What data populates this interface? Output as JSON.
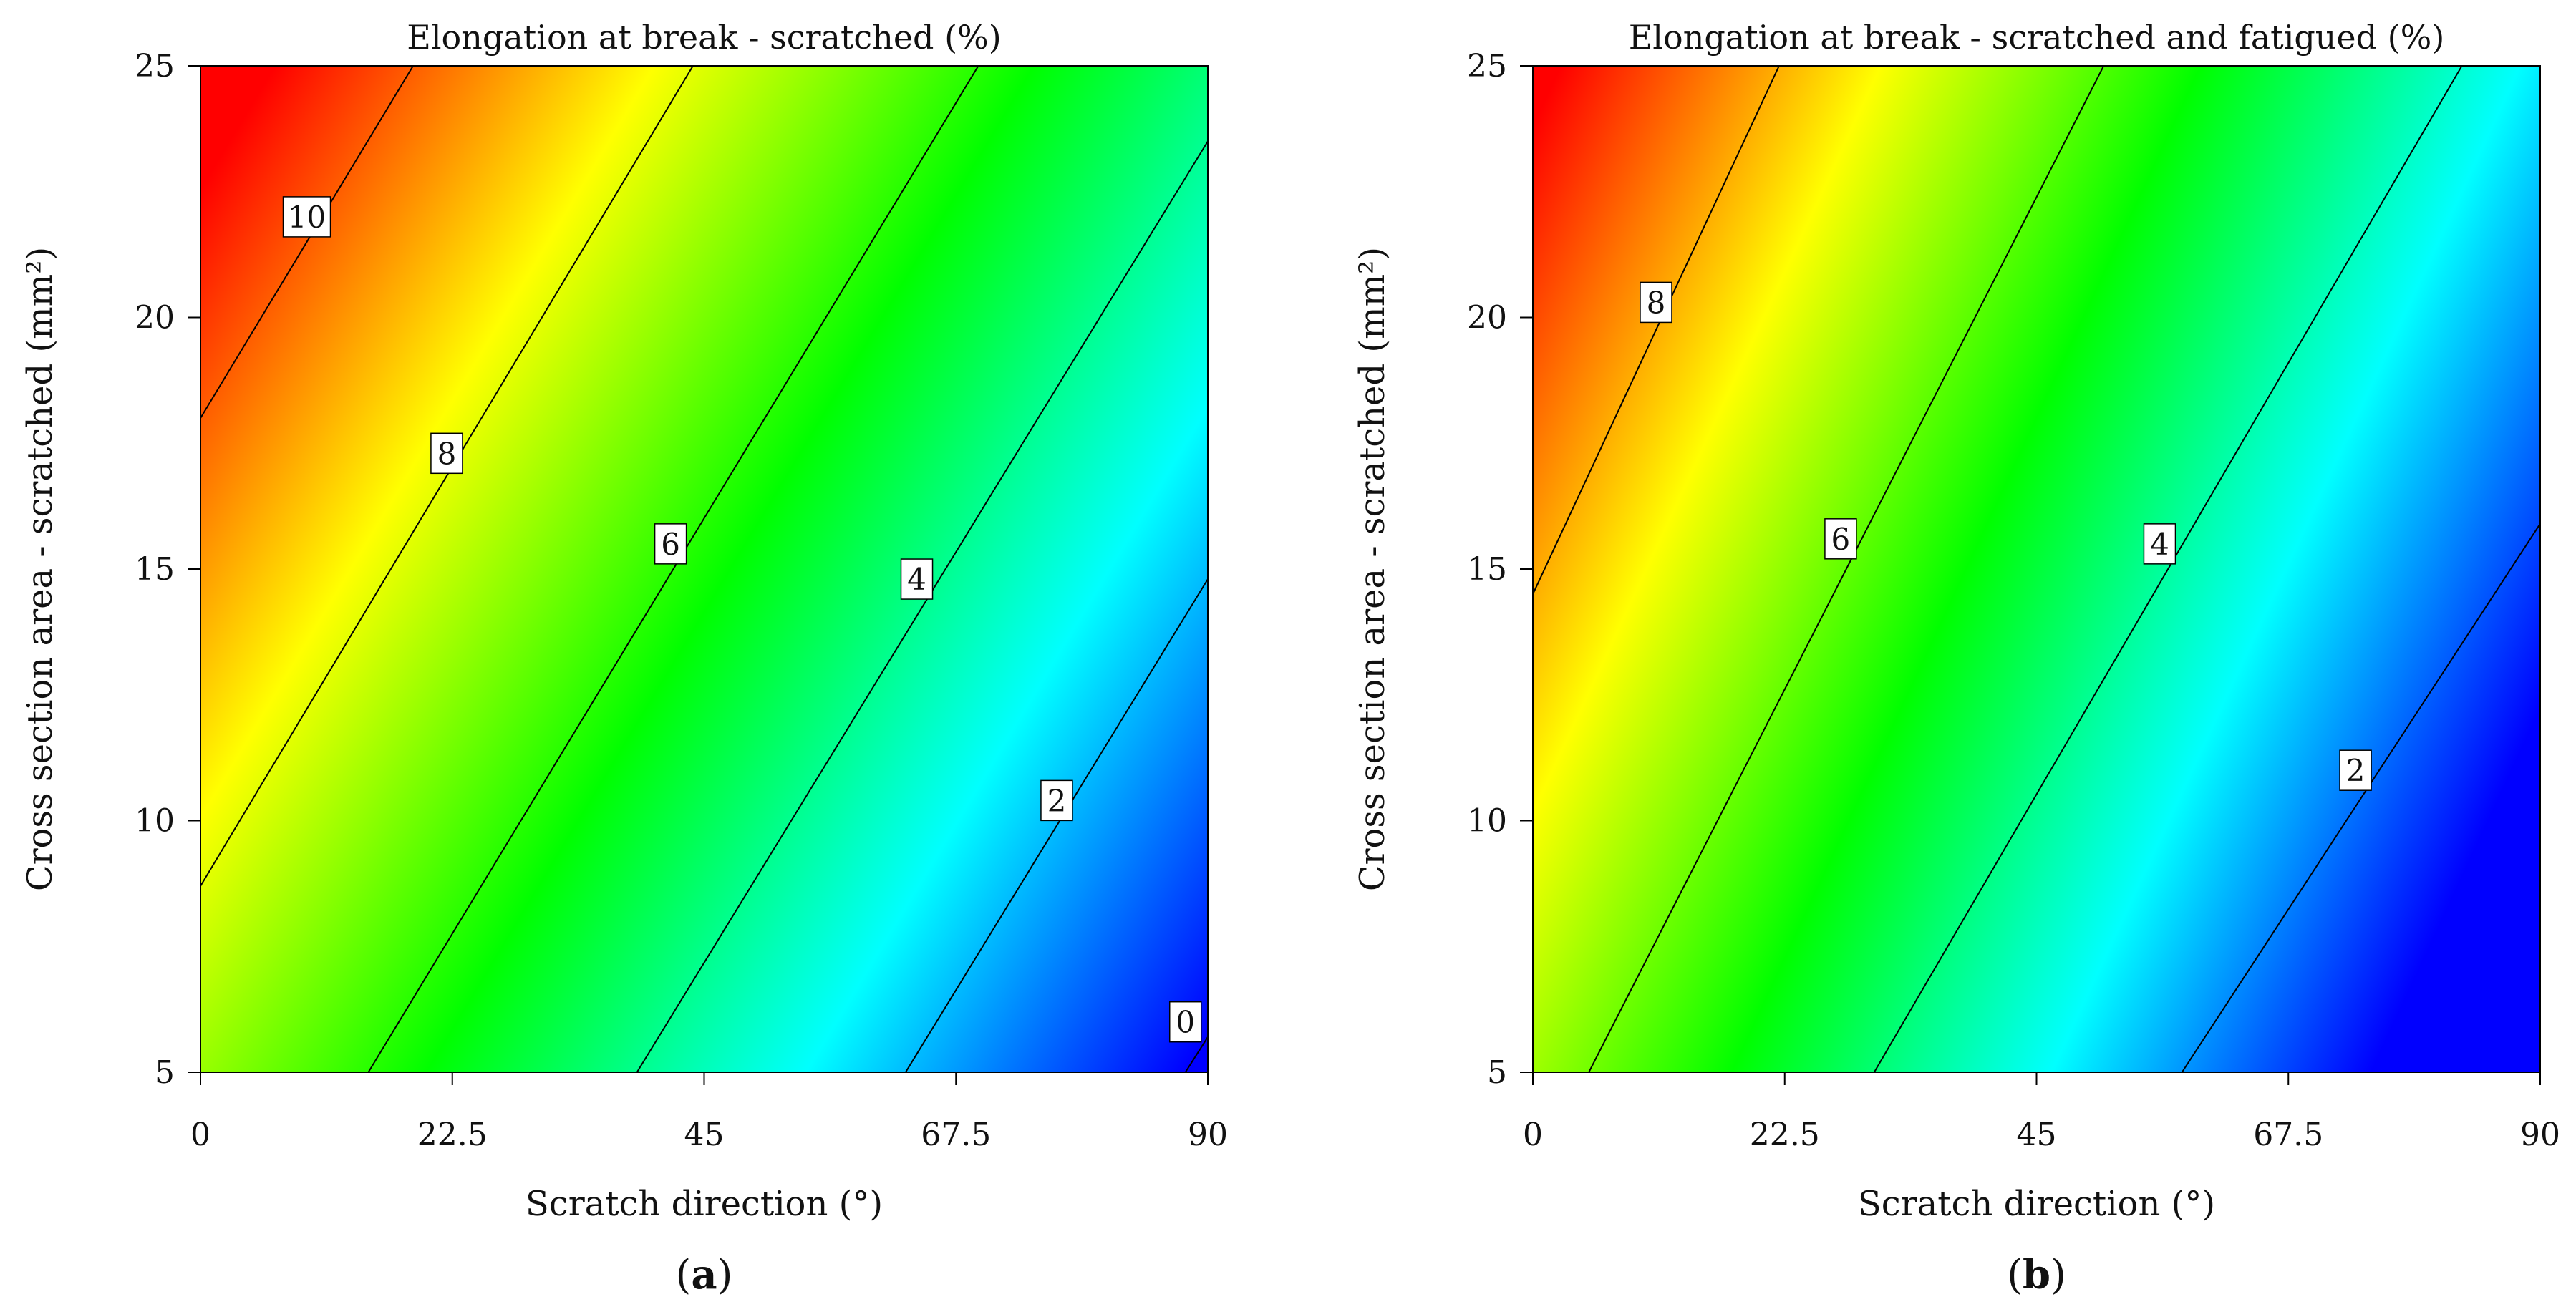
{
  "chart_data": [
    {
      "type": "heatmap",
      "panel_label": "a",
      "title": "Elongation at break - scratched (%)",
      "xlabel": "Scratch direction (°)",
      "ylabel": "Cross section area - scratched (mm²)",
      "xlim": [
        0,
        90
      ],
      "ylim": [
        5,
        25
      ],
      "xticks": [
        "0",
        "22.5",
        "45",
        "67.5",
        "90"
      ],
      "yticks": [
        "5",
        "10",
        "15",
        "20",
        "25"
      ],
      "grid": false,
      "colormap": [
        "#ff0000",
        "#ffff00",
        "#00ff00",
        "#00ffff",
        "#0000ff"
      ],
      "color_range": [
        0,
        11
      ],
      "contours": [
        {
          "level": 10,
          "label": "10",
          "points": [
            [
              0,
              18
            ],
            [
              19,
              25
            ]
          ],
          "label_at": [
            9.5,
            22
          ]
        },
        {
          "level": 8,
          "label": "8",
          "points": [
            [
              0,
              8.7
            ],
            [
              44,
              25
            ]
          ],
          "label_at": [
            22,
            17.3
          ]
        },
        {
          "level": 6,
          "label": "6",
          "points": [
            [
              15,
              5
            ],
            [
              69.5,
              25
            ]
          ],
          "label_at": [
            42,
            15.5
          ]
        },
        {
          "level": 4,
          "label": "4",
          "points": [
            [
              39,
              5
            ],
            [
              90,
              23.5
            ]
          ],
          "label_at": [
            64,
            14.8
          ]
        },
        {
          "level": 2,
          "label": "2",
          "points": [
            [
              63,
              5
            ],
            [
              90,
              14.8
            ]
          ],
          "label_at": [
            76.5,
            10.4
          ]
        },
        {
          "level": 0,
          "label": "0",
          "points": [
            [
              88,
              5
            ],
            [
              90,
              5.7
            ]
          ],
          "label_at": [
            88,
            6
          ]
        }
      ]
    },
    {
      "type": "heatmap",
      "panel_label": "b",
      "title": "Elongation at break - scratched and fatigued (%)",
      "xlabel": "Scratch direction (°)",
      "ylabel": "Cross section area - scratched (mm²)",
      "xlim": [
        0,
        90
      ],
      "ylim": [
        5,
        25
      ],
      "xticks": [
        "0",
        "22.5",
        "45",
        "67.5",
        "90"
      ],
      "yticks": [
        "5",
        "10",
        "15",
        "20",
        "25"
      ],
      "grid": false,
      "colormap": [
        "#ff0000",
        "#ffff00",
        "#00ff00",
        "#00ffff",
        "#0000ff"
      ],
      "color_range": [
        0.7,
        9.5
      ],
      "contours": [
        {
          "level": 8,
          "label": "8",
          "points": [
            [
              0,
              14.5
            ],
            [
              22,
              25
            ]
          ],
          "label_at": [
            11,
            20.3
          ]
        },
        {
          "level": 6,
          "label": "6",
          "points": [
            [
              5,
              5
            ],
            [
              51,
              25
            ]
          ],
          "label_at": [
            27.5,
            15.6
          ]
        },
        {
          "level": 4,
          "label": "4",
          "points": [
            [
              30.5,
              5
            ],
            [
              83,
              25
            ]
          ],
          "label_at": [
            56,
            15.5
          ]
        },
        {
          "level": 2,
          "label": "2",
          "points": [
            [
              58,
              5
            ],
            [
              90,
              15.9
            ]
          ],
          "label_at": [
            73.5,
            11
          ]
        }
      ]
    }
  ]
}
